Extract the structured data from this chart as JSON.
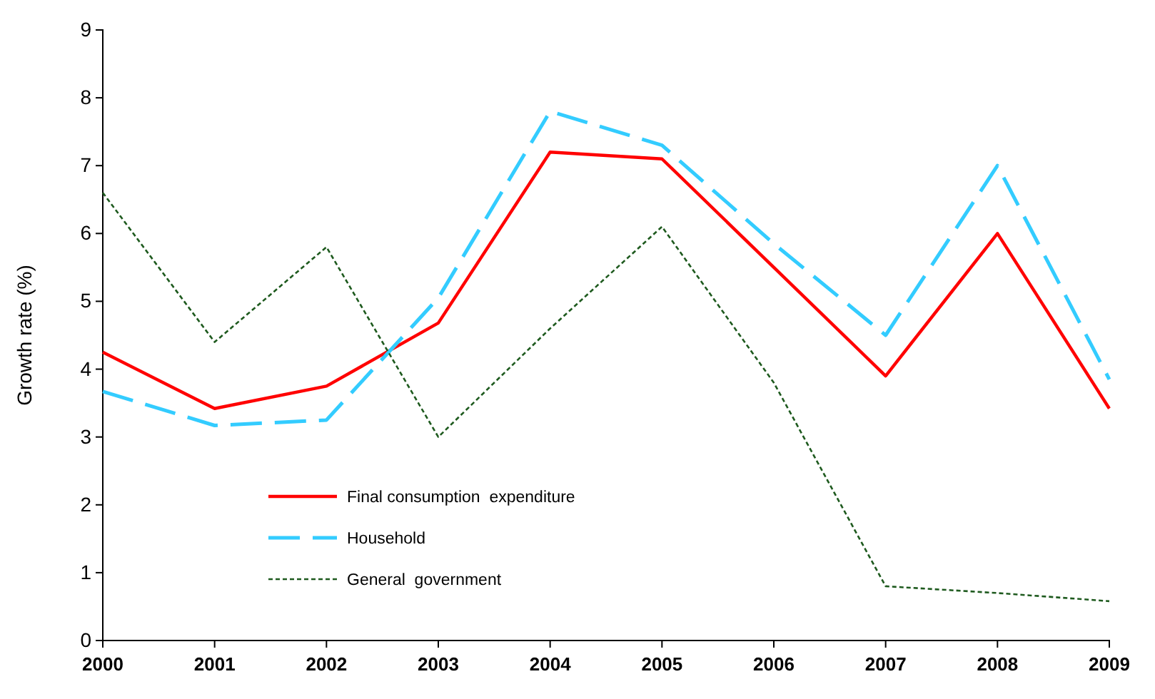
{
  "chart_data": {
    "type": "line",
    "ylabel": "Growth rate (%)",
    "x": [
      2000,
      2001,
      2002,
      2003,
      2004,
      2005,
      2006,
      2007,
      2008,
      2009
    ],
    "xlim": [
      2000,
      2009
    ],
    "xticks": [
      2000,
      2001,
      2002,
      2003,
      2004,
      2005,
      2006,
      2007,
      2008,
      2009
    ],
    "ylim": [
      0,
      9
    ],
    "yticks": [
      0,
      1,
      2,
      3,
      4,
      5,
      6,
      7,
      8,
      9
    ],
    "grid": false,
    "legend": "bottom left",
    "marker": "none",
    "series": [
      {
        "name": "Final consumption  expenditure",
        "color": "#ff0000",
        "line_style": "solid",
        "values": [
          4.25,
          3.42,
          3.75,
          4.68,
          7.2,
          7.1,
          5.5,
          3.9,
          6.0,
          3.42
        ]
      },
      {
        "name": "Household",
        "color": "#33ccff",
        "line_style": "dashed",
        "values": [
          3.67,
          3.17,
          3.25,
          5.05,
          7.8,
          7.3,
          5.85,
          4.5,
          7.0,
          3.85
        ]
      },
      {
        "name": "General  government",
        "color": "#1e5a1e",
        "line_style": "dotted",
        "values": [
          6.6,
          4.4,
          5.8,
          3.0,
          4.6,
          6.1,
          3.8,
          0.8,
          0.7,
          0.58
        ]
      }
    ]
  }
}
